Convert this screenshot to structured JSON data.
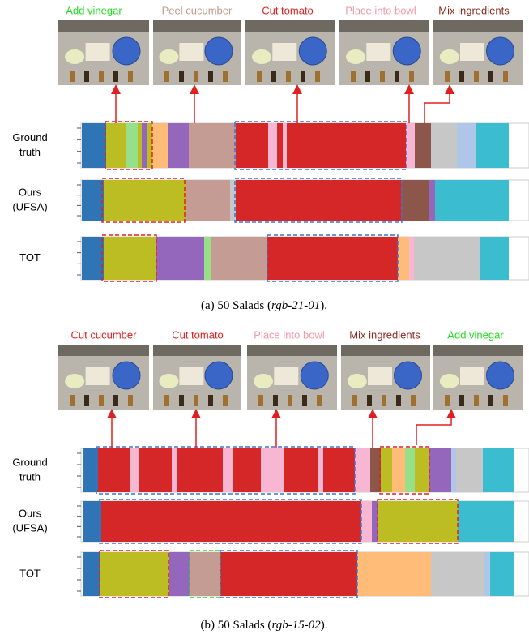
{
  "panels": [
    {
      "actions": [
        {
          "label": "Add vinegar",
          "color": "#22dd22"
        },
        {
          "label": "Peel cucumber",
          "color": "#c49a8e"
        },
        {
          "label": "Cut tomato",
          "color": "#dd2222"
        },
        {
          "label": "Place into bowl",
          "color": "#f09aa8"
        },
        {
          "label": "Mix ingredients",
          "color": "#8c2a20"
        }
      ],
      "rows": [
        {
          "lines": [
            "Ground",
            "truth"
          ]
        },
        {
          "lines": [
            "Ours",
            "(UFSA)"
          ]
        },
        {
          "lines": [
            "TOT"
          ]
        }
      ],
      "caption": {
        "prefix": "(a) 50 Salads (",
        "video": "rgb-21-01",
        "suffix": ")."
      }
    },
    {
      "actions": [
        {
          "label": "Cut cucumber",
          "color": "#dd2222"
        },
        {
          "label": "Cut tomato",
          "color": "#dd2222"
        },
        {
          "label": "Place into bowl",
          "color": "#f09aa8"
        },
        {
          "label": "Mix ingredients",
          "color": "#8c2a20"
        },
        {
          "label": "Add vinegar",
          "color": "#22dd22"
        }
      ],
      "rows": [
        {
          "lines": [
            "Ground",
            "truth"
          ]
        },
        {
          "lines": [
            "Ours",
            "(UFSA)"
          ]
        },
        {
          "lines": [
            "TOT"
          ]
        }
      ],
      "caption": {
        "prefix": "(b) 50 Salads (",
        "video": "rgb-15-02",
        "suffix": ")."
      }
    }
  ]
}
